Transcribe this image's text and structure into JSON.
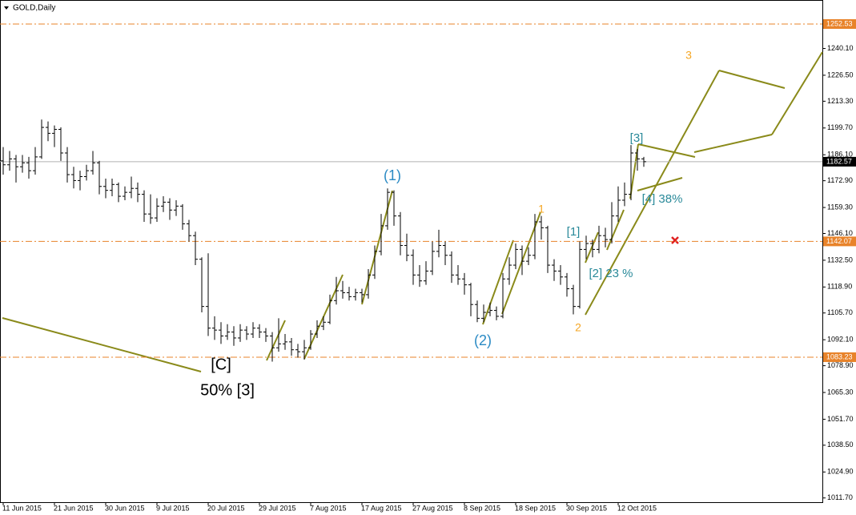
{
  "chart_data": {
    "type": "ohlc",
    "title": "GOLD,Daily",
    "bar_color": "#000000",
    "categories": [
      "11 Jun 2015",
      null,
      null,
      null,
      null,
      null,
      null,
      null,
      "21 Jun 2015",
      null,
      null,
      null,
      null,
      null,
      null,
      null,
      "30 Jun 2015",
      null,
      null,
      null,
      null,
      null,
      null,
      null,
      "9 Jul 2015",
      null,
      null,
      null,
      null,
      null,
      null,
      null,
      "20 Jul 2015",
      null,
      null,
      null,
      null,
      null,
      null,
      null,
      "29 Jul 2015",
      null,
      null,
      null,
      null,
      null,
      null,
      null,
      "7 Aug 2015",
      null,
      null,
      null,
      null,
      null,
      null,
      null,
      "17 Aug 2015",
      null,
      null,
      null,
      null,
      null,
      null,
      null,
      "27 Aug 2015",
      null,
      null,
      null,
      null,
      null,
      null,
      null,
      "8 Sep 2015",
      null,
      null,
      null,
      null,
      null,
      null,
      null,
      "18 Sep 2015",
      null,
      null,
      null,
      null,
      null,
      null,
      null,
      "30 Sep 2015",
      null,
      null,
      null,
      null,
      null,
      null,
      null,
      "12 Oct 2015",
      null,
      null,
      null,
      null
    ],
    "open": [
      1183,
      1181,
      1184,
      1180,
      1182,
      1178,
      1185,
      1200,
      1197,
      1199,
      1187,
      1176,
      1173,
      1175,
      1178,
      1182,
      1170,
      1168,
      1171,
      1165,
      1167,
      1169,
      1166,
      1156,
      1154,
      1160,
      1162,
      1158,
      1160,
      1151,
      1145,
      1133,
      1109,
      1098,
      1097,
      1094,
      1096,
      1093,
      1097,
      1095,
      1098,
      1096,
      1094,
      1088,
      1090,
      1091,
      1087,
      1086,
      1088,
      1095,
      1099,
      1101,
      1112,
      1117,
      1116,
      1114,
      1116,
      1115,
      1125,
      1137,
      1150,
      1167,
      1155,
      1140,
      1135,
      1125,
      1122,
      1127,
      1137,
      1140,
      1135,
      1125,
      1123,
      1120,
      1110,
      1103,
      1106,
      1107,
      1104,
      1123,
      1130,
      1138,
      1132,
      1135,
      1152,
      1149,
      1130,
      1127,
      1124,
      1118,
      1109,
      1138,
      1141,
      1138,
      1145,
      1143,
      1155,
      1163,
      1166,
      1187,
      1184
    ],
    "high": [
      1190,
      1188,
      1186,
      1186,
      1185,
      1190,
      1204,
      1203,
      1201,
      1200,
      1190,
      1180,
      1178,
      1181,
      1188,
      1183,
      1174,
      1174,
      1172,
      1170,
      1175,
      1172,
      1168,
      1166,
      1164,
      1165,
      1164,
      1163,
      1161,
      1153,
      1147,
      1134,
      1136,
      1104,
      1101,
      1100,
      1099,
      1100,
      1099,
      1101,
      1100,
      1098,
      1096,
      1103,
      1095,
      1093,
      1090,
      1092,
      1097,
      1102,
      1104,
      1115,
      1124,
      1122,
      1119,
      1118,
      1118,
      1128,
      1140,
      1156,
      1169,
      1168,
      1157,
      1146,
      1138,
      1130,
      1132,
      1142,
      1148,
      1142,
      1137,
      1130,
      1126,
      1121,
      1112,
      1110,
      1111,
      1109,
      1126,
      1134,
      1141,
      1140,
      1139,
      1156,
      1155,
      1150,
      1133,
      1130,
      1126,
      1120,
      1142,
      1145,
      1143,
      1150,
      1149,
      1162,
      1170,
      1172,
      1191,
      1189,
      1185
    ],
    "low": [
      1176,
      1178,
      1172,
      1177,
      1174,
      1176,
      1184,
      1193,
      1190,
      1183,
      1172,
      1169,
      1168,
      1173,
      1176,
      1166,
      1164,
      1165,
      1162,
      1163,
      1164,
      1162,
      1152,
      1151,
      1152,
      1157,
      1153,
      1155,
      1148,
      1142,
      1130,
      1106,
      1094,
      1092,
      1090,
      1092,
      1089,
      1091,
      1092,
      1093,
      1093,
      1091,
      1081,
      1086,
      1087,
      1084,
      1083,
      1082,
      1087,
      1093,
      1097,
      1100,
      1110,
      1113,
      1112,
      1112,
      1111,
      1113,
      1123,
      1135,
      1148,
      1150,
      1135,
      1132,
      1120,
      1119,
      1120,
      1125,
      1134,
      1130,
      1121,
      1120,
      1115,
      1104,
      1101,
      1101,
      1104,
      1102,
      1103,
      1120,
      1128,
      1125,
      1130,
      1133,
      1143,
      1126,
      1122,
      1120,
      1114,
      1105,
      1108,
      1133,
      1134,
      1136,
      1139,
      1141,
      1152,
      1160,
      1163,
      1178,
      1180
    ],
    "close": [
      1181,
      1184,
      1180,
      1182,
      1178,
      1185,
      1200,
      1197,
      1199,
      1187,
      1176,
      1173,
      1175,
      1178,
      1182,
      1170,
      1168,
      1171,
      1165,
      1167,
      1169,
      1166,
      1156,
      1154,
      1160,
      1162,
      1158,
      1160,
      1151,
      1145,
      1133,
      1109,
      1098,
      1097,
      1094,
      1096,
      1093,
      1097,
      1095,
      1098,
      1096,
      1094,
      1088,
      1090,
      1091,
      1087,
      1086,
      1088,
      1095,
      1099,
      1101,
      1112,
      1117,
      1116,
      1114,
      1116,
      1115,
      1125,
      1137,
      1150,
      1167,
      1155,
      1140,
      1135,
      1125,
      1122,
      1127,
      1137,
      1140,
      1135,
      1125,
      1123,
      1120,
      1110,
      1103,
      1106,
      1107,
      1104,
      1123,
      1130,
      1138,
      1132,
      1135,
      1152,
      1149,
      1130,
      1127,
      1124,
      1118,
      1109,
      1138,
      1141,
      1138,
      1145,
      1143,
      1155,
      1163,
      1166,
      1187,
      1184,
      1182.57
    ],
    "ylim": [
      1009.55,
      1257.41
    ],
    "yticks": [
      {
        "value": 1240.1,
        "label": "1240.10"
      },
      {
        "value": 1226.5,
        "label": "1226.50"
      },
      {
        "value": 1213.3,
        "label": "1213.30"
      },
      {
        "value": 1199.7,
        "label": "1199.70"
      },
      {
        "value": 1186.1,
        "label": "1186.10"
      },
      {
        "value": 1172.9,
        "label": "1172.90"
      },
      {
        "value": 1159.3,
        "label": "1159.30"
      },
      {
        "value": 1146.1,
        "label": "1146.10"
      },
      {
        "value": 1132.5,
        "label": "1132.50"
      },
      {
        "value": 1118.9,
        "label": "1118.90"
      },
      {
        "value": 1105.7,
        "label": "1105.70"
      },
      {
        "value": 1092.1,
        "label": "1092.10"
      },
      {
        "value": 1078.9,
        "label": "1078.90"
      },
      {
        "value": 1065.3,
        "label": "1065.30"
      },
      {
        "value": 1051.7,
        "label": "1051.70"
      },
      {
        "value": 1038.5,
        "label": "1038.50"
      },
      {
        "value": 1024.9,
        "label": "1024.90"
      },
      {
        "value": 1011.7,
        "label": "1011.70"
      }
    ],
    "levels": [
      1252.53,
      1142.07,
      1083.23
    ],
    "level_color": "#e8832a",
    "last_price": 1182.57,
    "last_price_color": "#b0b0b0",
    "annotations": [
      "(1)",
      "(2)",
      "[C]",
      "50% [3]",
      "1",
      "2",
      "3",
      "[1]",
      "[2] 23 %",
      "[3]",
      "[4] 38%"
    ]
  }
}
